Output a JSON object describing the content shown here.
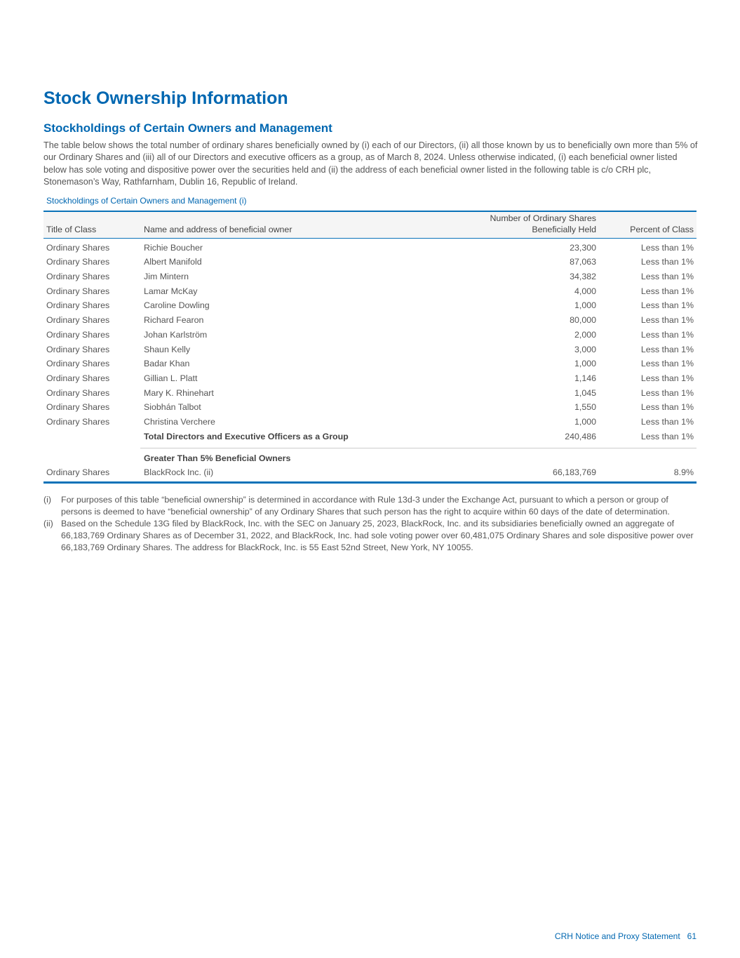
{
  "title": "Stock Ownership Information",
  "subtitle": "Stockholdings of Certain Owners and Management",
  "intro": "The table below shows the total number of ordinary shares beneficially owned by (i) each of our Directors, (ii) all those known by us to beneficially own more than 5% of our Ordinary Shares and (iii) all of our Directors and executive officers as a group, as of March 8, 2024. Unless otherwise indicated, (i) each beneficial owner listed below has sole voting and dispositive power over the securities held and (ii) the address of each beneficial owner listed in the following table is c/o CRH plc, Stonemason’s Way, Rathfarnham, Dublin 16, Republic of Ireland.",
  "table": {
    "caption": "Stockholdings of Certain Owners and Management (i)",
    "headers": [
      "Title of Class",
      "Name and address of beneficial owner",
      "Number of Ordinary Shares Beneficially Held",
      "Percent of Class"
    ],
    "rows": [
      [
        "Ordinary Shares",
        "Richie Boucher",
        "23,300",
        "Less than 1%"
      ],
      [
        "Ordinary Shares",
        "Albert Manifold",
        "87,063",
        "Less than 1%"
      ],
      [
        "Ordinary Shares",
        "Jim Mintern",
        "34,382",
        "Less than 1%"
      ],
      [
        "Ordinary Shares",
        "Lamar McKay",
        "4,000",
        "Less than 1%"
      ],
      [
        "Ordinary Shares",
        "Caroline Dowling",
        "1,000",
        "Less than 1%"
      ],
      [
        "Ordinary Shares",
        "Richard Fearon",
        "80,000",
        "Less than 1%"
      ],
      [
        "Ordinary Shares",
        "Johan Karlström",
        "2,000",
        "Less than 1%"
      ],
      [
        "Ordinary Shares",
        "Shaun Kelly",
        "3,000",
        "Less than 1%"
      ],
      [
        "Ordinary Shares",
        "Badar Khan",
        "1,000",
        "Less than 1%"
      ],
      [
        "Ordinary Shares",
        "Gillian L. Platt",
        "1,146",
        "Less than 1%"
      ],
      [
        "Ordinary Shares",
        "Mary K. Rhinehart",
        "1,045",
        "Less than 1%"
      ],
      [
        "Ordinary Shares",
        "Siobhán Talbot",
        "1,550",
        "Less than 1%"
      ],
      [
        "Ordinary Shares",
        "Christina Verchere",
        "1,000",
        "Less than 1%"
      ]
    ],
    "total": [
      "Total Directors and Executive Officers as a Group",
      "240,486",
      "Less than 1%"
    ],
    "section": "Greater Than 5% Beneficial Owners",
    "major": [
      "Ordinary Shares",
      "BlackRock Inc. (ii)",
      "66,183,769",
      "8.9%"
    ]
  },
  "footnotes": [
    {
      "mark": "(i)",
      "text": "For purposes of this table “beneficial ownership” is determined in accordance with Rule 13d-3 under the Exchange Act, pursuant to which a person or group of persons is deemed to have “beneficial ownership” of any Ordinary Shares that such person has the right to acquire within 60 days of the date of determination."
    },
    {
      "mark": "(ii)",
      "text": "Based on the Schedule 13G filed by BlackRock, Inc. with the SEC on January 25, 2023, BlackRock, Inc. and its subsidiaries beneficially owned an aggregate of 66,183,769 Ordinary Shares as of December 31, 2022, and BlackRock, Inc. had sole voting power over 60,481,075 Ordinary Shares and sole dispositive power over 66,183,769 Ordinary Shares. The address for BlackRock, Inc. is 55 East 52nd Street, New York, NY 10055."
    }
  ],
  "page_footer": "CRH Notice and Proxy Statement   61"
}
